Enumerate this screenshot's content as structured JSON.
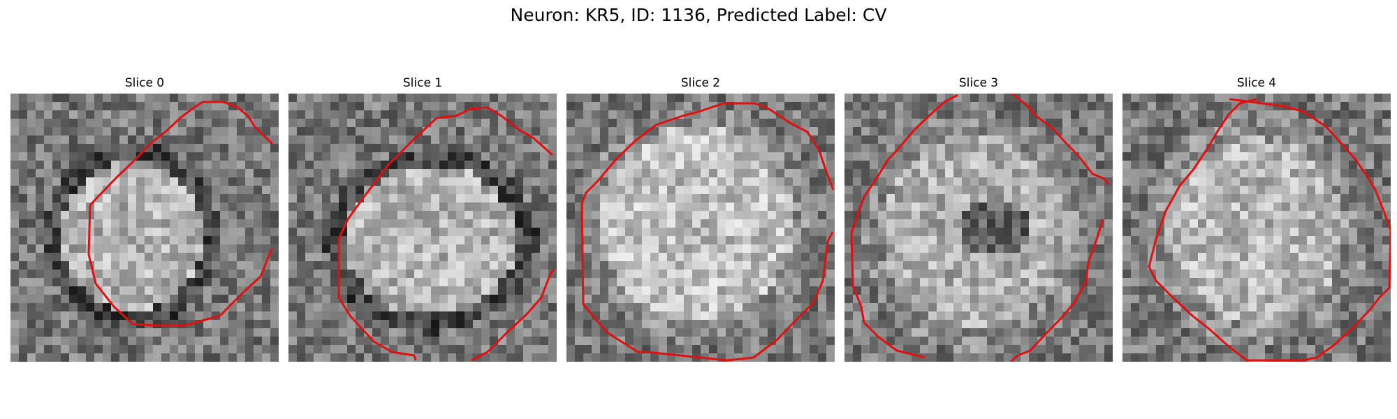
{
  "figure": {
    "title": "Neuron: KR5, ID: 1136, Predicted Label: CV"
  },
  "image_grid": {
    "pixels_per_side": 32
  },
  "contour_color": "#e01010",
  "panels": [
    {
      "title": "Slice 0",
      "description": "grayscale cell with dark ring, red contour"
    },
    {
      "title": "Slice 1",
      "description": "grayscale cell, partial red contour"
    },
    {
      "title": "Slice 2",
      "description": "bright cell, red octagonal contour"
    },
    {
      "title": "Slice 3",
      "description": "cell with dark center, open red contour"
    },
    {
      "title": "Slice 4",
      "description": "bright cell, red octagonal contour"
    }
  ]
}
